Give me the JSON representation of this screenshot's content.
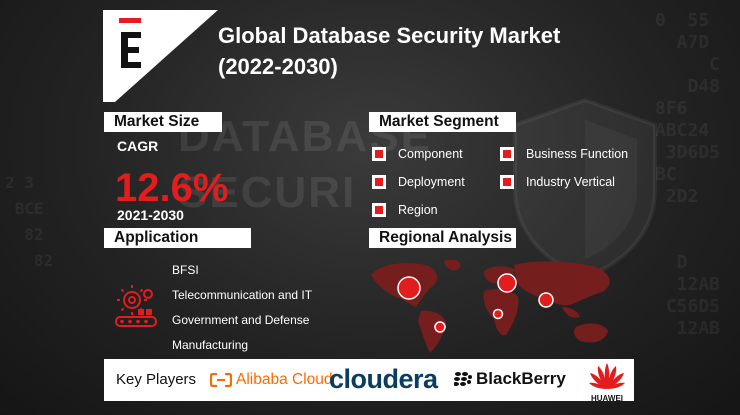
{
  "title": "Global Database Security Market (2022-2030)",
  "logo_letter": "E",
  "market_size": {
    "label": "Market Size",
    "cagr_label": "CAGR",
    "cagr_value": "12.6%",
    "period": "2021-2030"
  },
  "market_segment": {
    "label": "Market Segment",
    "items": [
      "Component",
      "Deployment",
      "Region",
      "Business Function",
      "Industry Vertical"
    ]
  },
  "application": {
    "label": "Application",
    "items": [
      "BFSI",
      "Telecommunication and IT",
      "Government and Defense",
      "Manufacturing"
    ]
  },
  "regional_analysis": {
    "label": "Regional Analysis"
  },
  "key_players": {
    "label": "Key Players",
    "players": [
      "Alibaba Cloud",
      "cloudera",
      "BlackBerry",
      "HUAWEI"
    ]
  },
  "background_words": [
    "DATABASE",
    "SECURI"
  ],
  "colors": {
    "accent": "#e31d1d",
    "background": "#232323",
    "label_bg": "#ffffff",
    "alibaba": "#ff6a00",
    "cloudera": "#0a3d62"
  }
}
